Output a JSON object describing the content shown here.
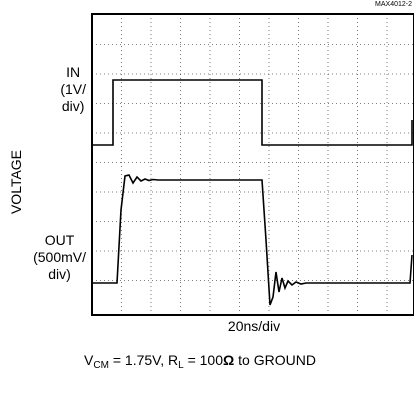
{
  "chart_data": {
    "type": "line",
    "figure_code": "MAX4012-2",
    "y_axis_label": "VOLTAGE",
    "x_axis_label": "20ns/div",
    "grid": "dotted 10 x 8 divisions",
    "traces": [
      {
        "label_lines": [
          "IN",
          "(1V/",
          "div)"
        ],
        "x_div": [
          0,
          1.8,
          1.8,
          16.7,
          16.7,
          32
        ],
        "y_level": [
          "low",
          "low",
          "high",
          "high",
          "low",
          "low"
        ]
      },
      {
        "label_lines": [
          "OUT",
          "(500mV/",
          "div)"
        ],
        "description": "rising edge ~1.9 div with overshoot/ringing, falling edge ~17.0 div with undershoot/ringing"
      }
    ],
    "conditions": {
      "vcm_symbol": "V",
      "vcm_sub": "CM",
      "vcm_value": " = 1.75V, ",
      "rl_symbol": "R",
      "rl_sub": "L",
      "rl_value": " = 100",
      "ohm": "Ω",
      "tail": " to GROUND"
    }
  }
}
